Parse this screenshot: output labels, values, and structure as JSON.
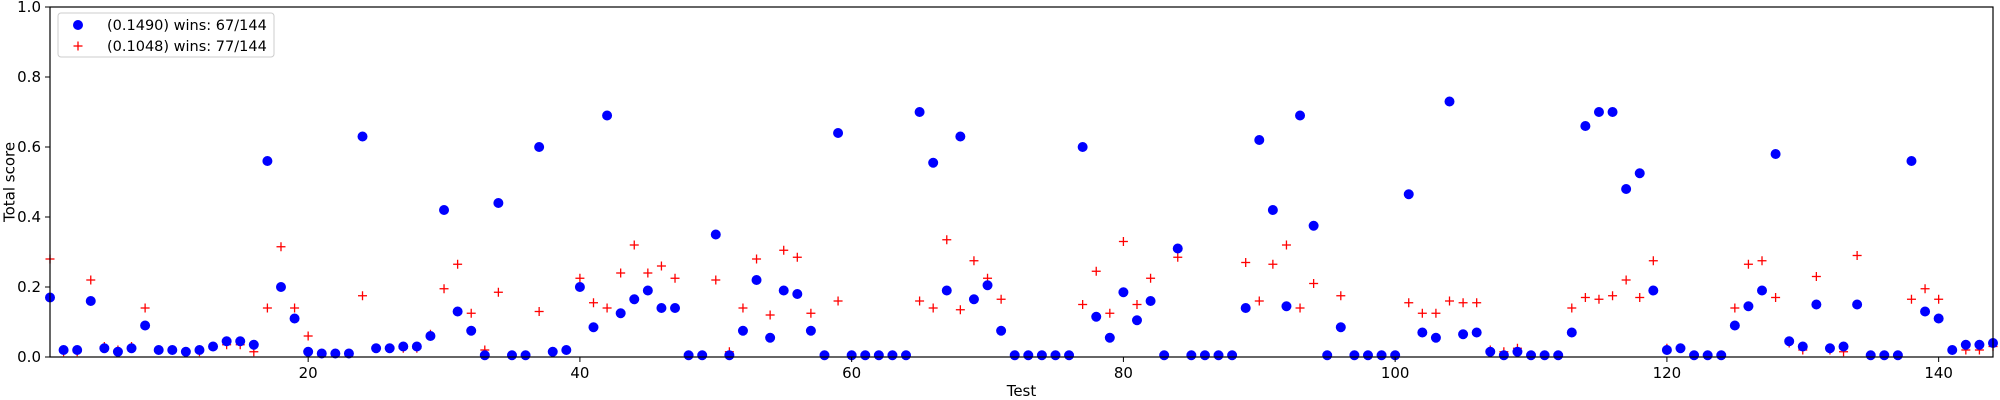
{
  "chart_data": {
    "type": "scatter",
    "xlabel": "Test",
    "ylabel": "Total score",
    "xlim": [
      1,
      144
    ],
    "ylim": [
      0,
      1.0
    ],
    "x_ticks": [
      20,
      40,
      60,
      80,
      100,
      120,
      140
    ],
    "y_ticks": [
      0.0,
      0.2,
      0.4,
      0.6,
      0.8,
      1.0
    ],
    "x_tick_labels": [
      "20",
      "40",
      "60",
      "80",
      "100",
      "120",
      "140"
    ],
    "y_tick_labels": [
      "0.0",
      "0.2",
      "0.4",
      "0.6",
      "0.8",
      "1.0"
    ],
    "legend_position": "top-left",
    "grid": false,
    "series": [
      {
        "name": "(0.1490) wins: 67/144",
        "marker": "circle",
        "color": "#0000ff",
        "values": [
          0.17,
          0.02,
          0.02,
          0.16,
          0.025,
          0.015,
          0.025,
          0.09,
          0.02,
          0.02,
          0.015,
          0.02,
          0.03,
          0.045,
          0.045,
          0.035,
          0.56,
          0.2,
          0.11,
          0.015,
          0.01,
          0.01,
          0.01,
          0.63,
          0.025,
          0.025,
          0.03,
          0.03,
          0.06,
          0.42,
          0.13,
          0.075,
          0.005,
          0.44,
          0.005,
          0.005,
          0.6,
          0.015,
          0.02,
          0.2,
          0.085,
          0.69,
          0.125,
          0.165,
          0.19,
          0.14,
          0.14,
          0.005,
          0.005,
          0.35,
          0.005,
          0.075,
          0.22,
          0.055,
          0.19,
          0.18,
          0.075,
          0.005,
          0.64,
          0.005,
          0.005,
          0.005,
          0.005,
          0.005,
          0.7,
          0.555,
          0.19,
          0.63,
          0.165,
          0.205,
          0.075,
          0.005,
          0.005,
          0.005,
          0.005,
          0.005,
          0.6,
          0.115,
          0.055,
          0.185,
          0.105,
          0.16,
          0.005,
          0.31,
          0.005,
          0.005,
          0.005,
          0.005,
          0.14,
          0.62,
          0.42,
          0.145,
          0.69,
          0.375,
          0.005,
          0.085,
          0.005,
          0.005,
          0.005,
          0.005,
          0.465,
          0.07,
          0.055,
          0.73,
          0.065,
          0.07,
          0.015,
          0.005,
          0.015,
          0.005,
          0.005,
          0.005,
          0.07,
          0.66,
          0.7,
          0.7,
          0.48,
          0.525,
          0.19,
          0.02,
          0.025,
          0.005,
          0.005,
          0.005,
          0.09,
          0.145,
          0.19,
          0.58,
          0.045,
          0.03,
          0.15,
          0.025,
          0.03,
          0.15,
          0.005,
          0.005,
          0.005,
          0.56,
          0.13,
          0.11,
          0.02,
          0.035,
          0.035,
          0.04
        ]
      },
      {
        "name": "(0.1048) wins: 77/144",
        "marker": "plus",
        "color": "#ff0000",
        "values": [
          0.28,
          0.015,
          0.015,
          0.22,
          0.03,
          0.02,
          0.03,
          0.14,
          0.02,
          0.02,
          0.015,
          0.015,
          0.03,
          0.035,
          0.035,
          0.015,
          0.14,
          0.315,
          0.14,
          0.06,
          0.01,
          0.01,
          0.01,
          0.175,
          0.025,
          0.025,
          0.025,
          0.025,
          0.065,
          0.195,
          0.265,
          0.125,
          0.02,
          0.185,
          0.005,
          0.005,
          0.13,
          0.015,
          0.02,
          0.225,
          0.155,
          0.14,
          0.24,
          0.32,
          0.24,
          0.26,
          0.225,
          0.005,
          0.005,
          0.22,
          0.015,
          0.14,
          0.28,
          0.12,
          0.305,
          0.285,
          0.125,
          0.005,
          0.16,
          0.005,
          0.005,
          0.005,
          0.005,
          0.005,
          0.16,
          0.14,
          0.335,
          0.135,
          0.275,
          0.225,
          0.165,
          0.005,
          0.005,
          0.005,
          0.005,
          0.005,
          0.15,
          0.245,
          0.125,
          0.33,
          0.15,
          0.225,
          0.005,
          0.285,
          0.005,
          0.005,
          0.005,
          0.005,
          0.27,
          0.16,
          0.265,
          0.32,
          0.14,
          0.21,
          0.005,
          0.175,
          0.005,
          0.005,
          0.005,
          0.005,
          0.155,
          0.125,
          0.125,
          0.16,
          0.155,
          0.155,
          0.02,
          0.015,
          0.025,
          0.005,
          0.005,
          0.005,
          0.14,
          0.17,
          0.165,
          0.175,
          0.22,
          0.17,
          0.275,
          0.025,
          0.025,
          0.005,
          0.005,
          0.005,
          0.14,
          0.265,
          0.275,
          0.17,
          0.04,
          0.02,
          0.23,
          0.02,
          0.015,
          0.29,
          0.005,
          0.005,
          0.005,
          0.165,
          0.195,
          0.165,
          0.02,
          0.02,
          0.02,
          0.03
        ]
      }
    ]
  }
}
